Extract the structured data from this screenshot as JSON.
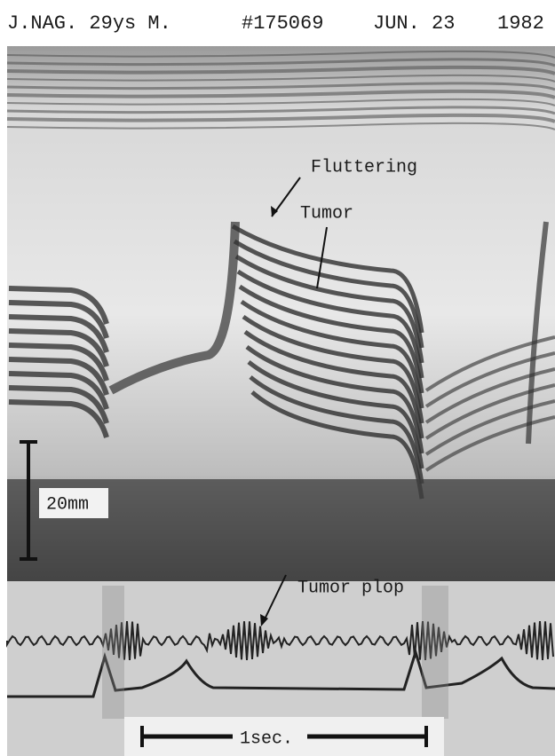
{
  "header": {
    "patient": "J.NAG. 29ys M.",
    "record": "#175069",
    "date": "JUN. 23",
    "year": "1982"
  },
  "annotations": {
    "fluttering": "Fluttering",
    "tumor": "Tumor",
    "tumor_plop": "Tumor plop"
  },
  "scales": {
    "depth": "20mm",
    "time": "1sec."
  }
}
